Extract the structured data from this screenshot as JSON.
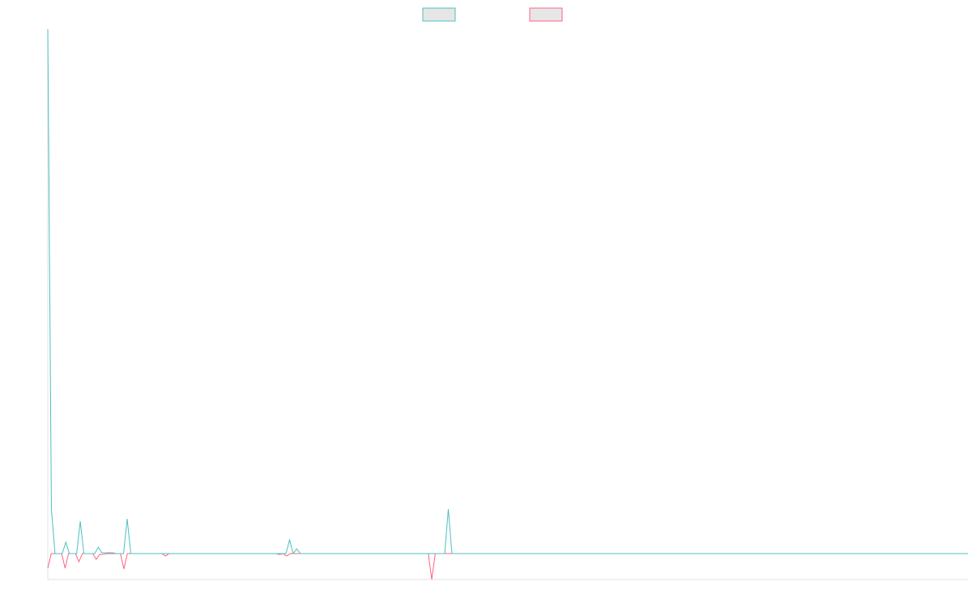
{
  "chart_data": {
    "type": "line",
    "ylim": [
      -33,
      649
    ],
    "series": [
      {
        "color": "#4bc0c0",
        "values": [
          649,
          55,
          0,
          0,
          0,
          14,
          0,
          0,
          0,
          40,
          0,
          0,
          0,
          0,
          8,
          1,
          1,
          1,
          1,
          0,
          0,
          0,
          43,
          0,
          0,
          0,
          0,
          0,
          0,
          0,
          0,
          0,
          0,
          0,
          0,
          0,
          0,
          0,
          0,
          0,
          0,
          0,
          0,
          0,
          0,
          0,
          0,
          0,
          0,
          0,
          0,
          0,
          0,
          0,
          0,
          0,
          0,
          0,
          0,
          0,
          0,
          0,
          0,
          0,
          0,
          0,
          0,
          17,
          0,
          6,
          0,
          0,
          0,
          0,
          0,
          0,
          0,
          0,
          0,
          0,
          0,
          0,
          0,
          0,
          0,
          0,
          0,
          0,
          0,
          0,
          0,
          0,
          0,
          0,
          0,
          0,
          0,
          0,
          0,
          0,
          0,
          0,
          0,
          0,
          0,
          0,
          0,
          0,
          0,
          0,
          0,
          55,
          0,
          0,
          0,
          0,
          0,
          0,
          0,
          0,
          0,
          0,
          0,
          0,
          0,
          0,
          0,
          0,
          0,
          0,
          0,
          0,
          0,
          0,
          0,
          0,
          0,
          0,
          0,
          0,
          0,
          0,
          0,
          0,
          0,
          0,
          0,
          0,
          0,
          0,
          0,
          0,
          0,
          0,
          0,
          0,
          0,
          0,
          0,
          0,
          0,
          0,
          0,
          0,
          0,
          0,
          0,
          0,
          0,
          0,
          0,
          0,
          0,
          0,
          0,
          0,
          0,
          0,
          0,
          0,
          0,
          0,
          0,
          0,
          0,
          0,
          0,
          0,
          0,
          0,
          0,
          0,
          0,
          0,
          0,
          0,
          0,
          0,
          0,
          0,
          0,
          0,
          0,
          0,
          0,
          0,
          0,
          0,
          0,
          0,
          0,
          0,
          0,
          0,
          0,
          0,
          0,
          0,
          0,
          0,
          0,
          0,
          0,
          0,
          0,
          0,
          0,
          0,
          0,
          0,
          0,
          0,
          0,
          0,
          0,
          0,
          0,
          0,
          0,
          0,
          0,
          0,
          0,
          0,
          0,
          0,
          0,
          0,
          0,
          0,
          0,
          0,
          0,
          0,
          0,
          0
        ]
      },
      {
        "color": "#ff6384",
        "values": [
          -18,
          0,
          0,
          0,
          0,
          -18,
          0,
          0,
          0,
          -10,
          0,
          0,
          0,
          0,
          -7,
          -1,
          -1,
          0,
          0,
          0,
          0,
          0,
          -19,
          0,
          0,
          0,
          0,
          0,
          0,
          0,
          0,
          0,
          0,
          0,
          -3,
          0,
          0,
          0,
          0,
          0,
          0,
          0,
          0,
          0,
          0,
          0,
          0,
          0,
          0,
          0,
          0,
          0,
          0,
          0,
          0,
          0,
          0,
          0,
          0,
          0,
          0,
          0,
          0,
          0,
          0,
          0,
          0,
          -1,
          0,
          -3,
          0,
          0,
          0,
          0,
          0,
          0,
          0,
          0,
          0,
          0,
          0,
          0,
          0,
          0,
          0,
          0,
          0,
          0,
          0,
          0,
          0,
          0,
          0,
          0,
          0,
          0,
          0,
          0,
          0,
          0,
          0,
          0,
          0,
          0,
          0,
          0,
          0,
          0,
          0,
          0,
          0,
          -32,
          0,
          0,
          0,
          0,
          0,
          0,
          0,
          0,
          0,
          0,
          0,
          0,
          0,
          0,
          0,
          0,
          0,
          0,
          0,
          0,
          0,
          0,
          0,
          0,
          0,
          0,
          0,
          0,
          0,
          0,
          0,
          0,
          0,
          0,
          0,
          0,
          0,
          0,
          0,
          0,
          0,
          0,
          0,
          0,
          0,
          0,
          0,
          0,
          0,
          0,
          0,
          0,
          0,
          0,
          0,
          0,
          0,
          0,
          0,
          0,
          0,
          0,
          0,
          0,
          0,
          0,
          0,
          0,
          0,
          0,
          0,
          0,
          0,
          0,
          0,
          0,
          0,
          0,
          0,
          0,
          0,
          0,
          0,
          0,
          0,
          0,
          0,
          0,
          0,
          0,
          0,
          0,
          0,
          0,
          0,
          0,
          0,
          0,
          0,
          0,
          0,
          0,
          0,
          0,
          0,
          0,
          0,
          0,
          0,
          0,
          0,
          0,
          0,
          0,
          0,
          0,
          0,
          0,
          0,
          0,
          0,
          0,
          0,
          0,
          0,
          0,
          0,
          0,
          0,
          0,
          0,
          0,
          0,
          0,
          0,
          0,
          0,
          0,
          0,
          0,
          0,
          0,
          0,
          0,
          0,
          0,
          0,
          0,
          0,
          0,
          0,
          0,
          0,
          0,
          0
        ]
      }
    ]
  }
}
